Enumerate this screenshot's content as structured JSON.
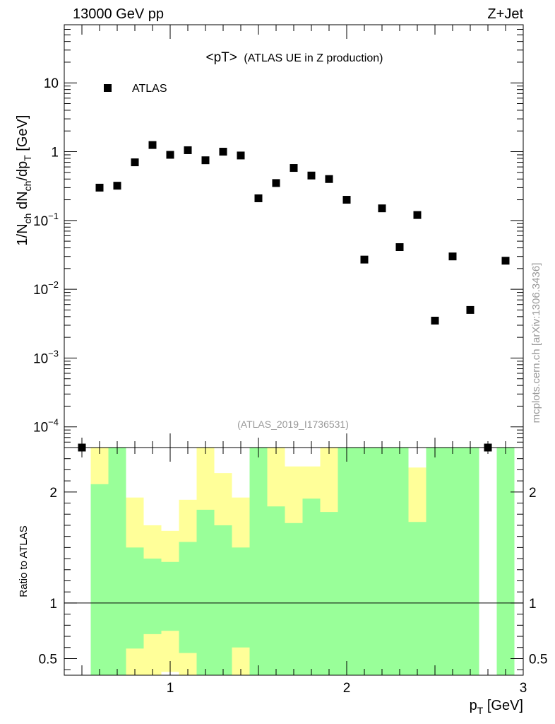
{
  "header": {
    "energy_label": "13000 GeV pp",
    "process_label": "Z+Jet"
  },
  "watermark": "mcplots.cern.ch [arXiv:1306.3436]",
  "chart_data": [
    {
      "type": "scatter",
      "name": "main-plot",
      "title_main": "<pT>",
      "title_sub": "(ATLAS UE in Z production)",
      "analysis_id": "(ATLAS_2019_I1736531)",
      "ylabel": "1/N_ch dN_ch/dp_T [GeV]",
      "yscale": "log",
      "xlim": [
        0.4,
        3.0
      ],
      "ylim": [
        5e-05,
        70
      ],
      "ytick_values": [
        0.0001,
        0.001,
        0.01,
        0.1,
        1,
        10
      ],
      "ytick_labels": [
        {
          "base": "10",
          "exp": "−4"
        },
        {
          "base": "10",
          "exp": "−3"
        },
        {
          "base": "10",
          "exp": "−2"
        },
        {
          "base": "10",
          "exp": "−1"
        },
        {
          "base": "1",
          "exp": ""
        },
        {
          "base": "10",
          "exp": ""
        }
      ],
      "legend": [
        {
          "label": "ATLAS",
          "marker": "square",
          "color": "#000000"
        }
      ],
      "legend_position": "top-left",
      "series": [
        {
          "name": "ATLAS",
          "x": [
            0.5,
            0.6,
            0.7,
            0.8,
            0.9,
            1.0,
            1.1,
            1.2,
            1.3,
            1.4,
            1.5,
            1.6,
            1.7,
            1.8,
            1.9,
            2.0,
            2.1,
            2.2,
            2.3,
            2.4,
            2.5,
            2.6,
            2.7,
            2.8,
            2.9
          ],
          "y": [
            5e-05,
            0.3,
            0.32,
            0.7,
            1.25,
            0.9,
            1.05,
            0.75,
            1.0,
            0.88,
            0.21,
            0.35,
            0.58,
            0.45,
            0.4,
            0.2,
            0.027,
            0.15,
            0.041,
            0.12,
            0.0035,
            0.03,
            0.005,
            5e-05,
            0.026
          ]
        }
      ]
    },
    {
      "type": "bar",
      "name": "ratio-plot",
      "ylabel": "Ratio to ATLAS",
      "xlabel": "p_T [GeV]",
      "xlim": [
        0.4,
        3.0
      ],
      "ylim": [
        0.35,
        2.4
      ],
      "xtick_values": [
        1,
        2,
        3
      ],
      "xtick_labels": [
        "1",
        "2",
        "3"
      ],
      "ytick_values": [
        0.5,
        1,
        2
      ],
      "ytick_labels": [
        "0.5",
        "1",
        "2"
      ],
      "reference_line": 1,
      "band_colors": {
        "inner": "#99ff99",
        "outer": "#ffff99"
      },
      "bin_edges": [
        0.55,
        0.65,
        0.75,
        0.85,
        0.95,
        1.05,
        1.15,
        1.25,
        1.35,
        1.45,
        1.55,
        1.65,
        1.75,
        1.85,
        1.95,
        2.05,
        2.15,
        2.25,
        2.35,
        2.45,
        2.55,
        2.65,
        2.75,
        2.85,
        2.95
      ],
      "bins": [
        {
          "x0": 0.55,
          "x1": 0.65,
          "outer": [
            0.35,
            2.4
          ],
          "inner": [
            0.35,
            2.07
          ]
        },
        {
          "x0": 0.65,
          "x1": 0.75,
          "outer": [
            0.35,
            2.4
          ],
          "inner": [
            0.35,
            2.4
          ]
        },
        {
          "x0": 0.75,
          "x1": 0.85,
          "outer": [
            0.35,
            1.95
          ],
          "inner": [
            0.59,
            1.5
          ]
        },
        {
          "x0": 0.85,
          "x1": 0.95,
          "outer": [
            0.35,
            1.7
          ],
          "inner": [
            0.72,
            1.4
          ]
        },
        {
          "x0": 0.95,
          "x1": 1.05,
          "outer": [
            0.38,
            1.65
          ],
          "inner": [
            0.75,
            1.37
          ]
        },
        {
          "x0": 1.05,
          "x1": 1.15,
          "outer": [
            0.35,
            1.93
          ],
          "inner": [
            0.55,
            1.55
          ]
        },
        {
          "x0": 1.15,
          "x1": 1.25,
          "outer": [
            0.35,
            2.4
          ],
          "inner": [
            0.35,
            1.84
          ]
        },
        {
          "x0": 1.25,
          "x1": 1.35,
          "outer": [
            0.35,
            2.17
          ],
          "inner": [
            0.35,
            1.7
          ]
        },
        {
          "x0": 1.35,
          "x1": 1.45,
          "outer": [
            0.35,
            1.95
          ],
          "inner": [
            0.6,
            1.5
          ]
        },
        {
          "x0": 1.45,
          "x1": 1.55,
          "outer": [
            0.35,
            2.4
          ],
          "inner": [
            0.35,
            2.4
          ]
        },
        {
          "x0": 1.55,
          "x1": 1.65,
          "outer": [
            0.35,
            2.4
          ],
          "inner": [
            0.35,
            1.87
          ]
        },
        {
          "x0": 1.65,
          "x1": 1.75,
          "outer": [
            0.35,
            2.23
          ],
          "inner": [
            0.35,
            1.72
          ]
        },
        {
          "x0": 1.75,
          "x1": 1.85,
          "outer": [
            0.35,
            2.23
          ],
          "inner": [
            0.35,
            1.94
          ]
        },
        {
          "x0": 1.85,
          "x1": 1.95,
          "outer": [
            0.35,
            2.4
          ],
          "inner": [
            0.35,
            1.82
          ]
        },
        {
          "x0": 1.95,
          "x1": 2.05,
          "outer": [
            0.35,
            2.4
          ],
          "inner": [
            0.35,
            2.4
          ]
        },
        {
          "x0": 2.05,
          "x1": 2.15,
          "outer": [
            0.35,
            2.4
          ],
          "inner": [
            0.35,
            2.4
          ]
        },
        {
          "x0": 2.15,
          "x1": 2.25,
          "outer": [
            0.35,
            2.4
          ],
          "inner": [
            0.35,
            2.4
          ]
        },
        {
          "x0": 2.25,
          "x1": 2.35,
          "outer": [
            0.35,
            2.4
          ],
          "inner": [
            0.35,
            2.4
          ]
        },
        {
          "x0": 2.35,
          "x1": 2.45,
          "outer": [
            0.35,
            2.22
          ],
          "inner": [
            0.35,
            1.73
          ]
        },
        {
          "x0": 2.45,
          "x1": 2.55,
          "outer": [
            0.35,
            2.4
          ],
          "inner": [
            0.35,
            2.4
          ]
        },
        {
          "x0": 2.55,
          "x1": 2.65,
          "outer": [
            0.35,
            2.4
          ],
          "inner": [
            0.35,
            2.4
          ]
        },
        {
          "x0": 2.65,
          "x1": 2.75,
          "outer": [
            0.35,
            2.4
          ],
          "inner": [
            0.35,
            2.4
          ]
        },
        {
          "x0": 2.85,
          "x1": 2.95,
          "outer": [
            0.35,
            2.4
          ],
          "inner": [
            0.35,
            2.4
          ]
        }
      ]
    }
  ]
}
